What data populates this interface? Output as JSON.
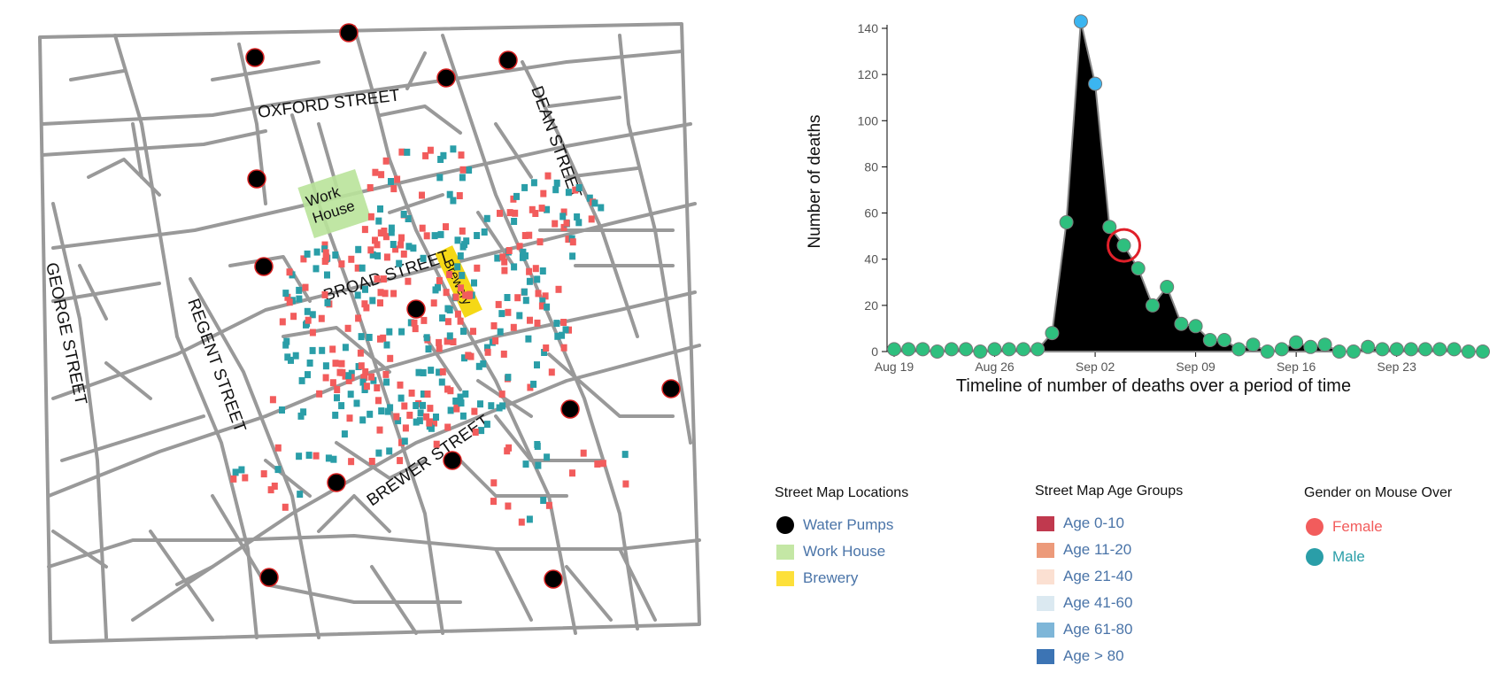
{
  "map": {
    "street_labels": [
      "OXFORD STREET",
      "DEAN STREET",
      "GEORGE STREET",
      "REGENT STREET",
      "BROAD STREET",
      "BREWER STREET"
    ],
    "workhouse_label": [
      "Work",
      "House"
    ],
    "brewery_label": "Brewery",
    "colors": {
      "female": "#f25c5c",
      "male": "#2a9ea8",
      "street": "#999999",
      "workhouse": "#b9e39a",
      "brewery": "#f5d816",
      "pump": "#000000",
      "pump_stroke": "#d62020"
    }
  },
  "chart_data": {
    "type": "area",
    "ylabel": "Number of deaths",
    "xlabel": "Timeline of number of deaths over a period of time",
    "x_tick_labels": [
      "Aug 19",
      "Aug 26",
      "Sep 02",
      "Sep 09",
      "Sep 16",
      "Sep 23"
    ],
    "ylim": [
      0,
      140
    ],
    "y_ticks": [
      0,
      20,
      40,
      60,
      80,
      100,
      120,
      140
    ],
    "x": [
      "Aug 19",
      "Aug 20",
      "Aug 21",
      "Aug 22",
      "Aug 23",
      "Aug 24",
      "Aug 25",
      "Aug 26",
      "Aug 27",
      "Aug 28",
      "Aug 29",
      "Aug 30",
      "Aug 31",
      "Sep 01",
      "Sep 02",
      "Sep 03",
      "Sep 04",
      "Sep 05",
      "Sep 06",
      "Sep 07",
      "Sep 08",
      "Sep 09",
      "Sep 10",
      "Sep 11",
      "Sep 12",
      "Sep 13",
      "Sep 14",
      "Sep 15",
      "Sep 16",
      "Sep 17",
      "Sep 18",
      "Sep 19",
      "Sep 20",
      "Sep 21",
      "Sep 22",
      "Sep 23",
      "Sep 24",
      "Sep 25",
      "Sep 26",
      "Sep 27",
      "Sep 28",
      "Sep 29"
    ],
    "values": [
      1,
      1,
      1,
      0,
      1,
      1,
      0,
      1,
      1,
      1,
      1,
      8,
      56,
      143,
      116,
      54,
      46,
      36,
      20,
      28,
      12,
      11,
      5,
      5,
      1,
      3,
      0,
      1,
      4,
      2,
      3,
      0,
      0,
      2,
      1,
      1,
      1,
      1,
      1,
      1,
      0,
      0
    ],
    "highlight_index": 16,
    "colors": {
      "area": "#000000",
      "point": "#2ebf7e",
      "point_peak": "#3bb5f0",
      "highlight": "#e0202a"
    }
  },
  "legends": {
    "locations": {
      "title": "Street Map Locations",
      "items": [
        {
          "label": "Water Pumps",
          "color": "#000000",
          "shape": "circle"
        },
        {
          "label": "Work House",
          "color": "#c4e7a5",
          "shape": "rect"
        },
        {
          "label": "Brewery",
          "color": "#fde03a",
          "shape": "rect"
        }
      ]
    },
    "age": {
      "title": "Street Map Age Groups",
      "items": [
        {
          "label": "Age 0-10",
          "color": "#c0394e"
        },
        {
          "label": "Age 11-20",
          "color": "#ec9a7a"
        },
        {
          "label": "Age 21-40",
          "color": "#fbe0d2"
        },
        {
          "label": "Age 41-60",
          "color": "#dbe9f1"
        },
        {
          "label": "Age 61-80",
          "color": "#7eb6d8"
        },
        {
          "label": "Age > 80",
          "color": "#3c74b4"
        }
      ]
    },
    "gender": {
      "title": "Gender on Mouse Over",
      "items": [
        {
          "label": "Female",
          "color": "#f25c5c"
        },
        {
          "label": "Male",
          "color": "#2a9ea8"
        }
      ]
    }
  }
}
